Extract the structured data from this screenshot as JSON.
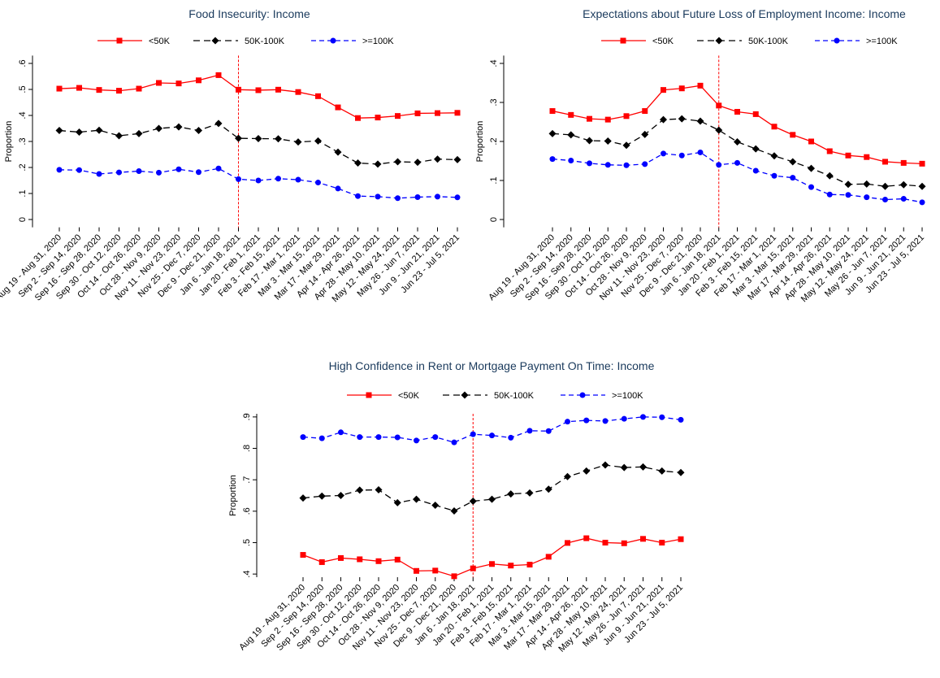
{
  "chart_data": [
    {
      "type": "line",
      "title": "Food Insecurity: Income",
      "ylabel": "Proportion",
      "categories": [
        "Aug 19 - Aug 31, 2020",
        "Sep 2 - Sep 14, 2020",
        "Sep 16 - Sep 28, 2020",
        "Sep 30 - Oct 12, 2020",
        "Oct 14 - Oct 26, 2020",
        "Oct 28 - Nov 9, 2020",
        "Nov 11 - Nov 23, 2020",
        "Nov 25 - Dec 7, 2020",
        "Dec 9 - Dec 21, 2020",
        "Jan 6 - Jan 18, 2021",
        "Jan 20 - Feb 1, 2021",
        "Feb 3 - Feb 15, 2021",
        "Feb 17 - Mar 1, 2021",
        "Mar 3 - Mar 15, 2021",
        "Mar 17 - Mar 29, 2021",
        "Apr 14 - Apr 26, 2021",
        "Apr 28 - May 10, 2021",
        "May 12 - May 24, 2021",
        "May 26 - Jun 7, 2021",
        "Jun 9 - Jun 21, 2021",
        "Jun 23 - Jul 5, 2021"
      ],
      "series": [
        {
          "name": "<50K",
          "color": "#ff0000",
          "marker": "square",
          "dash": "solid",
          "values": [
            0.503,
            0.506,
            0.498,
            0.495,
            0.503,
            0.525,
            0.523,
            0.535,
            0.555,
            0.499,
            0.497,
            0.499,
            0.49,
            0.474,
            0.431,
            0.39,
            0.392,
            0.398,
            0.408,
            0.409,
            0.41
          ]
        },
        {
          "name": "50K-100K",
          "color": "#000000",
          "marker": "diamond",
          "dash": "longdash",
          "values": [
            0.342,
            0.336,
            0.343,
            0.322,
            0.33,
            0.35,
            0.356,
            0.342,
            0.369,
            0.312,
            0.311,
            0.31,
            0.298,
            0.302,
            0.259,
            0.217,
            0.213,
            0.222,
            0.22,
            0.232,
            0.23
          ]
        },
        {
          "name": ">=100K",
          "color": "#0000ff",
          "marker": "circle",
          "dash": "dash",
          "values": [
            0.191,
            0.19,
            0.175,
            0.181,
            0.186,
            0.18,
            0.193,
            0.182,
            0.196,
            0.155,
            0.15,
            0.157,
            0.153,
            0.142,
            0.119,
            0.09,
            0.088,
            0.082,
            0.086,
            0.088,
            0.085
          ]
        }
      ],
      "ylim": [
        -0.03,
        0.63
      ],
      "yticks": [
        0,
        {
          "value": 0.1,
          "label": ".1"
        },
        {
          "value": 0.2,
          "label": ".2"
        },
        {
          "value": 0.3,
          "label": ".3"
        },
        {
          "value": 0.4,
          "label": ".4"
        },
        {
          "value": 0.5,
          "label": ".5"
        },
        {
          "value": 0.6,
          "label": ".6"
        }
      ],
      "vline": "Jan 6 - Jan 18, 2021",
      "legend": "top"
    },
    {
      "type": "line",
      "title": "Expectations about Future Loss of Employment Income: Income",
      "ylabel": "Proportion",
      "categories": [
        "Aug 19 - Aug 31, 2020",
        "Sep 2 - Sep 14, 2020",
        "Sep 16 - Sep 28, 2020",
        "Sep 30 - Oct 12, 2020",
        "Oct 14 - Oct 26, 2020",
        "Oct 28 - Nov 9, 2020",
        "Nov 11 - Nov 23, 2020",
        "Nov 25 - Dec 7, 2020",
        "Dec 9 - Dec 21, 2020",
        "Jan 6 - Jan 18, 2021",
        "Jan 20 - Feb 1, 2021",
        "Feb 3 - Feb 15, 2021",
        "Feb 17 - Mar 1, 2021",
        "Mar 3 - Mar 15, 2021",
        "Mar 17 - Mar 29, 2021",
        "Apr 14 - Apr 26, 2021",
        "Apr 28 - May 10, 2021",
        "May 12 - May 24, 2021",
        "May 26 - Jun 7, 2021",
        "Jun 9 - Jun 21, 2021",
        "Jun 23 - Jul 5, 2021"
      ],
      "series": [
        {
          "name": "<50K",
          "color": "#ff0000",
          "marker": "square",
          "dash": "solid",
          "values": [
            0.278,
            0.268,
            0.258,
            0.256,
            0.265,
            0.278,
            0.332,
            0.336,
            0.343,
            0.292,
            0.276,
            0.27,
            0.238,
            0.217,
            0.2,
            0.175,
            0.164,
            0.16,
            0.148,
            0.145,
            0.143
          ]
        },
        {
          "name": "50K-100K",
          "color": "#000000",
          "marker": "diamond",
          "dash": "longdash",
          "values": [
            0.22,
            0.217,
            0.202,
            0.201,
            0.19,
            0.218,
            0.256,
            0.258,
            0.252,
            0.229,
            0.199,
            0.181,
            0.163,
            0.148,
            0.131,
            0.112,
            0.09,
            0.091,
            0.085,
            0.089,
            0.085
          ]
        },
        {
          "name": ">=100K",
          "color": "#0000ff",
          "marker": "circle",
          "dash": "dash",
          "values": [
            0.155,
            0.151,
            0.144,
            0.14,
            0.139,
            0.142,
            0.169,
            0.164,
            0.172,
            0.14,
            0.145,
            0.125,
            0.112,
            0.107,
            0.083,
            0.064,
            0.063,
            0.057,
            0.051,
            0.053,
            0.044
          ]
        }
      ],
      "ylim": [
        -0.02,
        0.42
      ],
      "yticks": [
        0,
        {
          "value": 0.1,
          "label": ".1"
        },
        {
          "value": 0.2,
          "label": ".2"
        },
        {
          "value": 0.3,
          "label": ".3"
        },
        {
          "value": 0.4,
          "label": ".4"
        }
      ],
      "vline": "Jan 6 - Jan 18, 2021",
      "legend": "top"
    },
    {
      "type": "line",
      "title": "High Confidence in Rent or Mortgage Payment On Time: Income",
      "ylabel": "Proportion",
      "categories": [
        "Aug 19 - Aug 31, 2020",
        "Sep 2 - Sep 14, 2020",
        "Sep 16 - Sep 28, 2020",
        "Sep 30 - Oct 12, 2020",
        "Oct 14 - Oct 26, 2020",
        "Oct 28 - Nov 9, 2020",
        "Nov 11 - Nov 23, 2020",
        "Nov 25 - Dec 7, 2020",
        "Dec 9 - Dec 21, 2020",
        "Jan 6 - Jan 18, 2021",
        "Jan 20 - Feb 1, 2021",
        "Feb 3 - Feb 15, 2021",
        "Feb 17 - Mar 1, 2021",
        "Mar 3 - Mar 15, 2021",
        "Mar 17 - Mar 29, 2021",
        "Apr 14 - Apr 26, 2021",
        "Apr 28 - May 10, 2021",
        "May 12 - May 24, 2021",
        "May 26 - Jun 7, 2021",
        "Jun 9 - Jun 21, 2021",
        "Jun 23 - Jul 5, 2021"
      ],
      "series": [
        {
          "name": "<50K",
          "color": "#ff0000",
          "marker": "square",
          "dash": "solid",
          "values": [
            0.461,
            0.438,
            0.451,
            0.447,
            0.441,
            0.446,
            0.41,
            0.411,
            0.393,
            0.418,
            0.432,
            0.427,
            0.43,
            0.455,
            0.499,
            0.514,
            0.5,
            0.498,
            0.512,
            0.5,
            0.511
          ]
        },
        {
          "name": "50K-100K",
          "color": "#000000",
          "marker": "diamond",
          "dash": "longdash",
          "values": [
            0.642,
            0.648,
            0.65,
            0.667,
            0.668,
            0.627,
            0.638,
            0.619,
            0.601,
            0.632,
            0.638,
            0.655,
            0.658,
            0.67,
            0.71,
            0.728,
            0.747,
            0.739,
            0.741,
            0.728,
            0.723
          ]
        },
        {
          "name": ">=100K",
          "color": "#0000ff",
          "marker": "circle",
          "dash": "dash",
          "values": [
            0.836,
            0.832,
            0.851,
            0.836,
            0.836,
            0.835,
            0.825,
            0.836,
            0.819,
            0.845,
            0.841,
            0.834,
            0.856,
            0.855,
            0.885,
            0.889,
            0.887,
            0.894,
            0.9,
            0.899,
            0.891
          ]
        }
      ],
      "ylim": [
        0.39,
        0.91
      ],
      "yticks": [
        {
          "value": 0.4,
          "label": ".4"
        },
        {
          "value": 0.5,
          "label": ".5"
        },
        {
          "value": 0.6,
          "label": ".6"
        },
        {
          "value": 0.7,
          "label": ".7"
        },
        {
          "value": 0.8,
          "label": ".8"
        },
        {
          "value": 0.9,
          "label": ".9"
        }
      ],
      "vline": "Jan 6 - Jan 18, 2021",
      "legend": "top"
    }
  ]
}
